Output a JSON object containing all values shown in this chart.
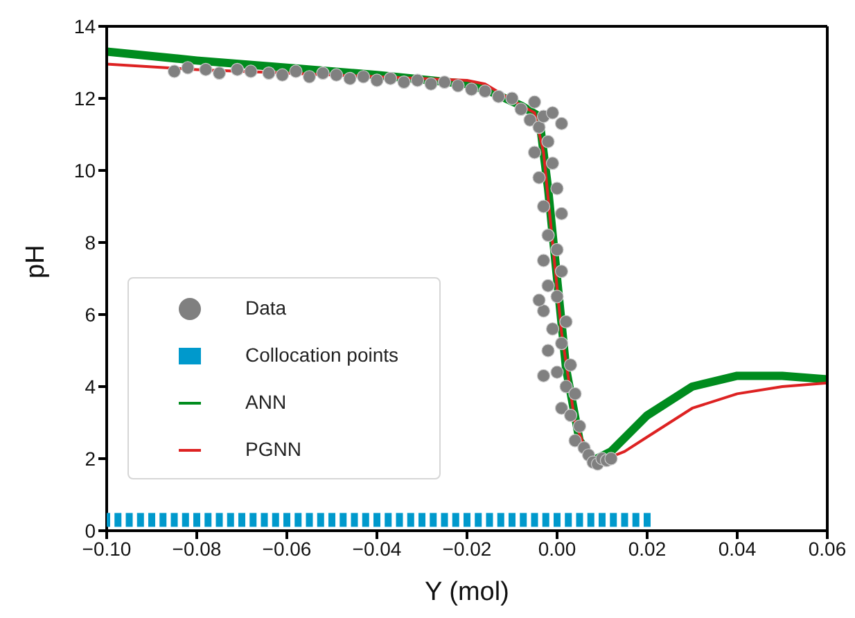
{
  "chart_data": {
    "type": "line",
    "xlabel": "Y (mol)",
    "ylabel": "pH",
    "xlim": [
      -0.1,
      0.06
    ],
    "ylim": [
      0,
      14
    ],
    "xticks": [
      {
        "value": -0.1,
        "label": "−0.10"
      },
      {
        "value": -0.08,
        "label": "−0.08"
      },
      {
        "value": -0.06,
        "label": "−0.06"
      },
      {
        "value": -0.04,
        "label": "−0.04"
      },
      {
        "value": -0.02,
        "label": "−0.02"
      },
      {
        "value": 0,
        "label": "0.00"
      },
      {
        "value": 0.02,
        "label": "0.02"
      },
      {
        "value": 0.04,
        "label": "0.04"
      },
      {
        "value": 0.06,
        "label": "0.06"
      }
    ],
    "yticks": [
      0,
      2,
      4,
      6,
      8,
      10,
      12,
      14
    ],
    "legend": "bottom left",
    "grid": false,
    "series": [
      {
        "name": "Data",
        "type": "scatter",
        "marker": "circle",
        "color": "#808080",
        "x": [
          -0.085,
          -0.082,
          -0.078,
          -0.075,
          -0.071,
          -0.068,
          -0.064,
          -0.061,
          -0.058,
          -0.055,
          -0.052,
          -0.049,
          -0.046,
          -0.043,
          -0.04,
          -0.037,
          -0.034,
          -0.031,
          -0.028,
          -0.025,
          -0.022,
          -0.019,
          -0.016,
          -0.013,
          -0.01,
          -0.008,
          -0.006,
          -0.005,
          -0.004,
          -0.003,
          -0.005,
          -0.002,
          -0.004,
          -0.001,
          -0.003,
          0.0,
          -0.002,
          0.001,
          -0.003,
          0.0,
          -0.002,
          0.001,
          -0.003,
          0.0,
          -0.001,
          0.002,
          -0.002,
          0.001,
          0.003,
          0.0,
          0.002,
          0.004,
          0.001,
          0.003,
          0.005,
          0.004,
          0.006,
          0.007,
          0.008,
          0.009,
          0.01,
          0.011,
          0.012,
          -0.001,
          0.001,
          -0.004,
          -0.003
        ],
        "values": [
          12.75,
          12.85,
          12.8,
          12.7,
          12.8,
          12.75,
          12.7,
          12.65,
          12.75,
          12.6,
          12.7,
          12.65,
          12.55,
          12.6,
          12.5,
          12.55,
          12.45,
          12.5,
          12.4,
          12.45,
          12.35,
          12.25,
          12.2,
          12.05,
          12.0,
          11.7,
          11.4,
          11.9,
          11.2,
          11.5,
          10.5,
          10.8,
          9.8,
          10.2,
          9.0,
          9.5,
          8.2,
          8.8,
          7.5,
          7.8,
          6.8,
          7.2,
          6.1,
          6.5,
          5.6,
          5.8,
          5.0,
          5.2,
          4.6,
          4.4,
          4.0,
          3.8,
          3.4,
          3.2,
          2.9,
          2.5,
          2.3,
          2.1,
          1.9,
          1.85,
          2.0,
          1.95,
          2.0,
          11.6,
          11.3,
          6.4,
          4.3
        ]
      },
      {
        "name": "Collocation points",
        "type": "scatter",
        "color": "#0099cc",
        "x": [
          -0.1,
          -0.0975,
          -0.095,
          -0.0925,
          -0.09,
          -0.0875,
          -0.085,
          -0.0825,
          -0.08,
          -0.0775,
          -0.075,
          -0.0725,
          -0.07,
          -0.0675,
          -0.065,
          -0.0625,
          -0.06,
          -0.0575,
          -0.055,
          -0.0525,
          -0.05,
          -0.0475,
          -0.045,
          -0.0425,
          -0.04,
          -0.0375,
          -0.035,
          -0.0325,
          -0.03,
          -0.0275,
          -0.025,
          -0.0225,
          -0.02,
          -0.0175,
          -0.015,
          -0.0125,
          -0.01,
          -0.0075,
          -0.005,
          -0.0025,
          0.0,
          0.0025,
          0.005,
          0.0075,
          0.01,
          0.0125,
          0.015,
          0.0175,
          0.02
        ],
        "values": [
          0.3,
          0.3,
          0.3,
          0.3,
          0.3,
          0.3,
          0.3,
          0.3,
          0.3,
          0.3,
          0.3,
          0.3,
          0.3,
          0.3,
          0.3,
          0.3,
          0.3,
          0.3,
          0.3,
          0.3,
          0.3,
          0.3,
          0.3,
          0.3,
          0.3,
          0.3,
          0.3,
          0.3,
          0.3,
          0.3,
          0.3,
          0.3,
          0.3,
          0.3,
          0.3,
          0.3,
          0.3,
          0.3,
          0.3,
          0.3,
          0.3,
          0.3,
          0.3,
          0.3,
          0.3,
          0.3,
          0.3,
          0.3,
          0.3
        ]
      },
      {
        "name": "ANN",
        "marker": "none",
        "color": "#008c1e",
        "x": [
          -0.1,
          -0.08,
          -0.06,
          -0.04,
          -0.02,
          -0.015,
          -0.008,
          -0.004,
          -0.002,
          0.0,
          0.002,
          0.005,
          0.008,
          0.012,
          0.02,
          0.03,
          0.04,
          0.05,
          0.06
        ],
        "values": [
          13.3,
          13.05,
          12.85,
          12.65,
          12.4,
          12.2,
          11.8,
          11.5,
          9.5,
          7.0,
          4.5,
          2.5,
          1.95,
          2.2,
          3.2,
          4.0,
          4.3,
          4.3,
          4.2
        ]
      },
      {
        "name": "PGNN",
        "marker": "none",
        "color": "#dd2222",
        "x": [
          -0.1,
          -0.08,
          -0.06,
          -0.04,
          -0.02,
          -0.016,
          -0.01,
          -0.005,
          -0.003,
          -0.001,
          0.001,
          0.004,
          0.007,
          0.01,
          0.015,
          0.02,
          0.03,
          0.04,
          0.05,
          0.06
        ],
        "values": [
          12.95,
          12.8,
          12.7,
          12.6,
          12.5,
          12.4,
          11.95,
          11.6,
          10.5,
          8.0,
          5.5,
          3.0,
          2.05,
          1.95,
          2.2,
          2.6,
          3.4,
          3.8,
          4.0,
          4.1
        ]
      }
    ]
  }
}
